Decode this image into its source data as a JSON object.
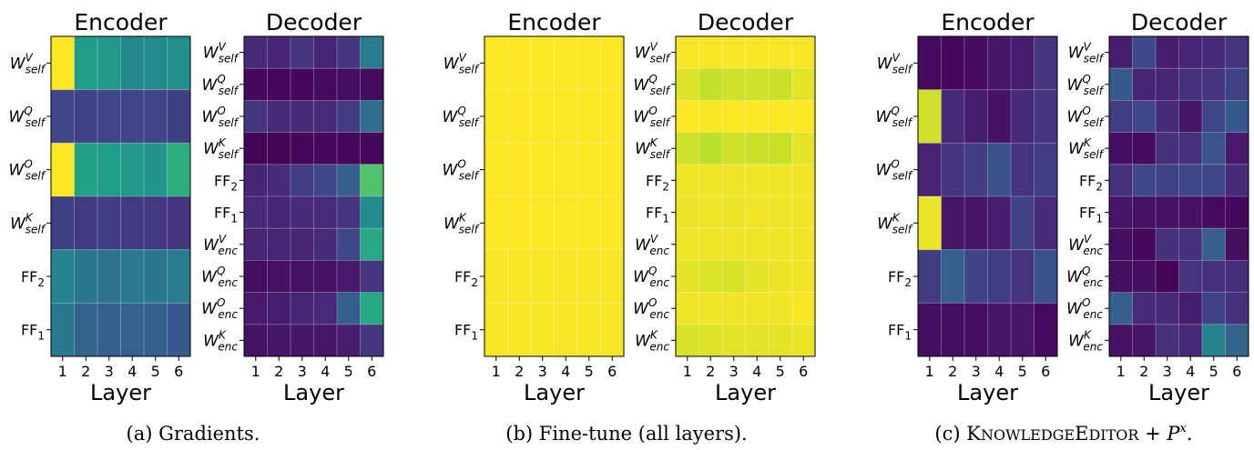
{
  "colors": {
    "viridis": [
      "#440154",
      "#482878",
      "#3e4989",
      "#31688e",
      "#26828e",
      "#1f9e89",
      "#35b779",
      "#6ece58",
      "#b5de2b",
      "#fde725"
    ],
    "grid": "#ffffff",
    "frame": "#000000"
  },
  "captions": {
    "a": "(a) Gradients.",
    "b": "(b) Fine-tune (all layers).",
    "c_prefix": "(c) ",
    "c_name_cap1": "K",
    "c_name_small1": "NOWLEDGE",
    "c_name_cap2": "E",
    "c_name_small2": "DITOR",
    "c_plus": " + ",
    "c_symbol": "P",
    "c_sup": "x",
    "c_end": "."
  },
  "chart_data": [
    {
      "type": "heatmap",
      "panel": "a",
      "title": "Encoder",
      "xlabel": "Layer",
      "x": [
        "1",
        "2",
        "3",
        "4",
        "5",
        "6"
      ],
      "rows": [
        {
          "base": "W",
          "sup": "V",
          "sub": "self"
        },
        {
          "base": "W",
          "sup": "Q",
          "sub": "self"
        },
        {
          "base": "W",
          "sup": "O",
          "sub": "self"
        },
        {
          "base": "W",
          "sup": "K",
          "sub": "self"
        },
        {
          "base": "FF",
          "sup": "",
          "sub": "2"
        },
        {
          "base": "FF",
          "sup": "",
          "sub": "1"
        }
      ],
      "values": [
        [
          1.0,
          0.55,
          0.53,
          0.47,
          0.48,
          0.5
        ],
        [
          0.22,
          0.2,
          0.21,
          0.21,
          0.21,
          0.19
        ],
        [
          1.0,
          0.57,
          0.55,
          0.53,
          0.52,
          0.62
        ],
        [
          0.19,
          0.17,
          0.18,
          0.17,
          0.17,
          0.15
        ],
        [
          0.45,
          0.4,
          0.38,
          0.41,
          0.4,
          0.42
        ],
        [
          0.4,
          0.32,
          0.3,
          0.31,
          0.3,
          0.28
        ]
      ],
      "vlim": [
        0,
        1
      ]
    },
    {
      "type": "heatmap",
      "panel": "a",
      "title": "Decoder",
      "xlabel": "Layer",
      "x": [
        "1",
        "2",
        "3",
        "4",
        "5",
        "6"
      ],
      "rows": [
        {
          "base": "W",
          "sup": "V",
          "sub": "self"
        },
        {
          "base": "W",
          "sup": "Q",
          "sub": "self"
        },
        {
          "base": "W",
          "sup": "O",
          "sub": "self"
        },
        {
          "base": "W",
          "sup": "K",
          "sub": "self"
        },
        {
          "base": "FF",
          "sup": "",
          "sub": "2"
        },
        {
          "base": "FF",
          "sup": "",
          "sub": "1"
        },
        {
          "base": "W",
          "sup": "V",
          "sub": "enc"
        },
        {
          "base": "W",
          "sup": "Q",
          "sub": "enc"
        },
        {
          "base": "W",
          "sup": "O",
          "sub": "enc"
        },
        {
          "base": "W",
          "sup": "K",
          "sub": "enc"
        }
      ],
      "values": [
        [
          0.12,
          0.1,
          0.15,
          0.1,
          0.16,
          0.42
        ],
        [
          0.02,
          0.02,
          0.02,
          0.03,
          0.04,
          0.03
        ],
        [
          0.15,
          0.12,
          0.12,
          0.12,
          0.18,
          0.35
        ],
        [
          0.01,
          0.01,
          0.02,
          0.02,
          0.02,
          0.02
        ],
        [
          0.1,
          0.12,
          0.18,
          0.22,
          0.3,
          0.72
        ],
        [
          0.12,
          0.1,
          0.12,
          0.12,
          0.15,
          0.48
        ],
        [
          0.1,
          0.1,
          0.1,
          0.12,
          0.22,
          0.6
        ],
        [
          0.04,
          0.05,
          0.05,
          0.05,
          0.07,
          0.16
        ],
        [
          0.07,
          0.08,
          0.1,
          0.11,
          0.3,
          0.6
        ],
        [
          0.05,
          0.06,
          0.06,
          0.06,
          0.08,
          0.16
        ]
      ],
      "vlim": [
        0,
        1
      ]
    },
    {
      "type": "heatmap",
      "panel": "b",
      "title": "Encoder",
      "xlabel": "Layer",
      "x": [
        "1",
        "2",
        "3",
        "4",
        "5",
        "6"
      ],
      "rows": [
        {
          "base": "W",
          "sup": "V",
          "sub": "self"
        },
        {
          "base": "W",
          "sup": "Q",
          "sub": "self"
        },
        {
          "base": "W",
          "sup": "O",
          "sub": "self"
        },
        {
          "base": "W",
          "sup": "K",
          "sub": "self"
        },
        {
          "base": "FF",
          "sup": "",
          "sub": "2"
        },
        {
          "base": "FF",
          "sup": "",
          "sub": "1"
        }
      ],
      "values": [
        [
          1.0,
          1.0,
          1.0,
          1.0,
          1.0,
          1.0
        ],
        [
          1.0,
          1.0,
          1.0,
          1.0,
          1.0,
          1.0
        ],
        [
          1.0,
          1.0,
          1.0,
          1.0,
          1.0,
          1.0
        ],
        [
          1.0,
          1.0,
          1.0,
          1.0,
          1.0,
          1.0
        ],
        [
          0.99,
          0.99,
          0.99,
          0.99,
          0.99,
          0.99
        ],
        [
          0.99,
          0.99,
          0.99,
          0.99,
          0.99,
          0.99
        ]
      ],
      "vlim": [
        0,
        1
      ]
    },
    {
      "type": "heatmap",
      "panel": "b",
      "title": "Decoder",
      "xlabel": "Layer",
      "x": [
        "1",
        "2",
        "3",
        "4",
        "5",
        "6"
      ],
      "rows": [
        {
          "base": "W",
          "sup": "V",
          "sub": "self"
        },
        {
          "base": "W",
          "sup": "Q",
          "sub": "self"
        },
        {
          "base": "W",
          "sup": "O",
          "sub": "self"
        },
        {
          "base": "W",
          "sup": "K",
          "sub": "self"
        },
        {
          "base": "FF",
          "sup": "",
          "sub": "2"
        },
        {
          "base": "FF",
          "sup": "",
          "sub": "1"
        },
        {
          "base": "W",
          "sup": "V",
          "sub": "enc"
        },
        {
          "base": "W",
          "sup": "Q",
          "sub": "enc"
        },
        {
          "base": "W",
          "sup": "O",
          "sub": "enc"
        },
        {
          "base": "W",
          "sup": "K",
          "sub": "enc"
        }
      ],
      "values": [
        [
          0.99,
          0.99,
          0.99,
          0.99,
          0.99,
          0.99
        ],
        [
          0.95,
          0.91,
          0.93,
          0.93,
          0.92,
          0.96
        ],
        [
          1.0,
          0.99,
          1.0,
          1.0,
          1.0,
          1.0
        ],
        [
          0.93,
          0.9,
          0.93,
          0.92,
          0.92,
          0.96
        ],
        [
          0.98,
          0.98,
          0.98,
          0.98,
          0.98,
          0.98
        ],
        [
          0.97,
          0.98,
          0.97,
          0.98,
          0.98,
          0.98
        ],
        [
          0.98,
          0.98,
          0.98,
          0.98,
          0.98,
          0.98
        ],
        [
          0.96,
          0.95,
          0.94,
          0.96,
          0.97,
          0.98
        ],
        [
          0.98,
          0.98,
          0.98,
          0.98,
          0.98,
          0.99
        ],
        [
          0.94,
          0.95,
          0.96,
          0.96,
          0.96,
          0.97
        ]
      ],
      "vlim": [
        0,
        1
      ]
    },
    {
      "type": "heatmap",
      "panel": "c",
      "title": "Encoder",
      "xlabel": "Layer",
      "x": [
        "1",
        "2",
        "3",
        "4",
        "5",
        "6"
      ],
      "rows": [
        {
          "base": "W",
          "sup": "V",
          "sub": "self"
        },
        {
          "base": "W",
          "sup": "Q",
          "sub": "self"
        },
        {
          "base": "W",
          "sup": "O",
          "sub": "self"
        },
        {
          "base": "W",
          "sup": "K",
          "sub": "self"
        },
        {
          "base": "FF",
          "sup": "",
          "sub": "2"
        },
        {
          "base": "FF",
          "sup": "",
          "sub": "1"
        }
      ],
      "values": [
        [
          0.03,
          0.02,
          0.03,
          0.06,
          0.08,
          0.15
        ],
        [
          0.93,
          0.12,
          0.08,
          0.05,
          0.12,
          0.15
        ],
        [
          0.1,
          0.15,
          0.18,
          0.25,
          0.15,
          0.18
        ],
        [
          0.97,
          0.06,
          0.06,
          0.08,
          0.2,
          0.12
        ],
        [
          0.18,
          0.3,
          0.2,
          0.18,
          0.15,
          0.25
        ],
        [
          0.04,
          0.04,
          0.04,
          0.06,
          0.06,
          0.03
        ]
      ],
      "vlim": [
        0,
        1
      ]
    },
    {
      "type": "heatmap",
      "panel": "c",
      "title": "Decoder",
      "xlabel": "Layer",
      "x": [
        "1",
        "2",
        "3",
        "4",
        "5",
        "6"
      ],
      "rows": [
        {
          "base": "W",
          "sup": "V",
          "sub": "self"
        },
        {
          "base": "W",
          "sup": "Q",
          "sub": "self"
        },
        {
          "base": "W",
          "sup": "O",
          "sub": "self"
        },
        {
          "base": "W",
          "sup": "K",
          "sub": "self"
        },
        {
          "base": "FF",
          "sup": "",
          "sub": "2"
        },
        {
          "base": "FF",
          "sup": "",
          "sub": "1"
        },
        {
          "base": "W",
          "sup": "V",
          "sub": "enc"
        },
        {
          "base": "W",
          "sup": "Q",
          "sub": "enc"
        },
        {
          "base": "W",
          "sup": "O",
          "sub": "enc"
        },
        {
          "base": "W",
          "sup": "K",
          "sub": "enc"
        }
      ],
      "values": [
        [
          0.08,
          0.22,
          0.08,
          0.1,
          0.12,
          0.15
        ],
        [
          0.28,
          0.1,
          0.1,
          0.14,
          0.15,
          0.2
        ],
        [
          0.18,
          0.22,
          0.12,
          0.06,
          0.22,
          0.28
        ],
        [
          0.04,
          0.03,
          0.14,
          0.14,
          0.26,
          0.07
        ],
        [
          0.14,
          0.22,
          0.2,
          0.22,
          0.22,
          0.12
        ],
        [
          0.06,
          0.05,
          0.05,
          0.05,
          0.03,
          0.02
        ],
        [
          0.04,
          0.02,
          0.14,
          0.14,
          0.3,
          0.04
        ],
        [
          0.04,
          0.04,
          0.01,
          0.15,
          0.14,
          0.13
        ],
        [
          0.3,
          0.12,
          0.12,
          0.08,
          0.2,
          0.14
        ],
        [
          0.05,
          0.06,
          0.14,
          0.12,
          0.45,
          0.32
        ]
      ],
      "vlim": [
        0,
        1
      ]
    }
  ]
}
